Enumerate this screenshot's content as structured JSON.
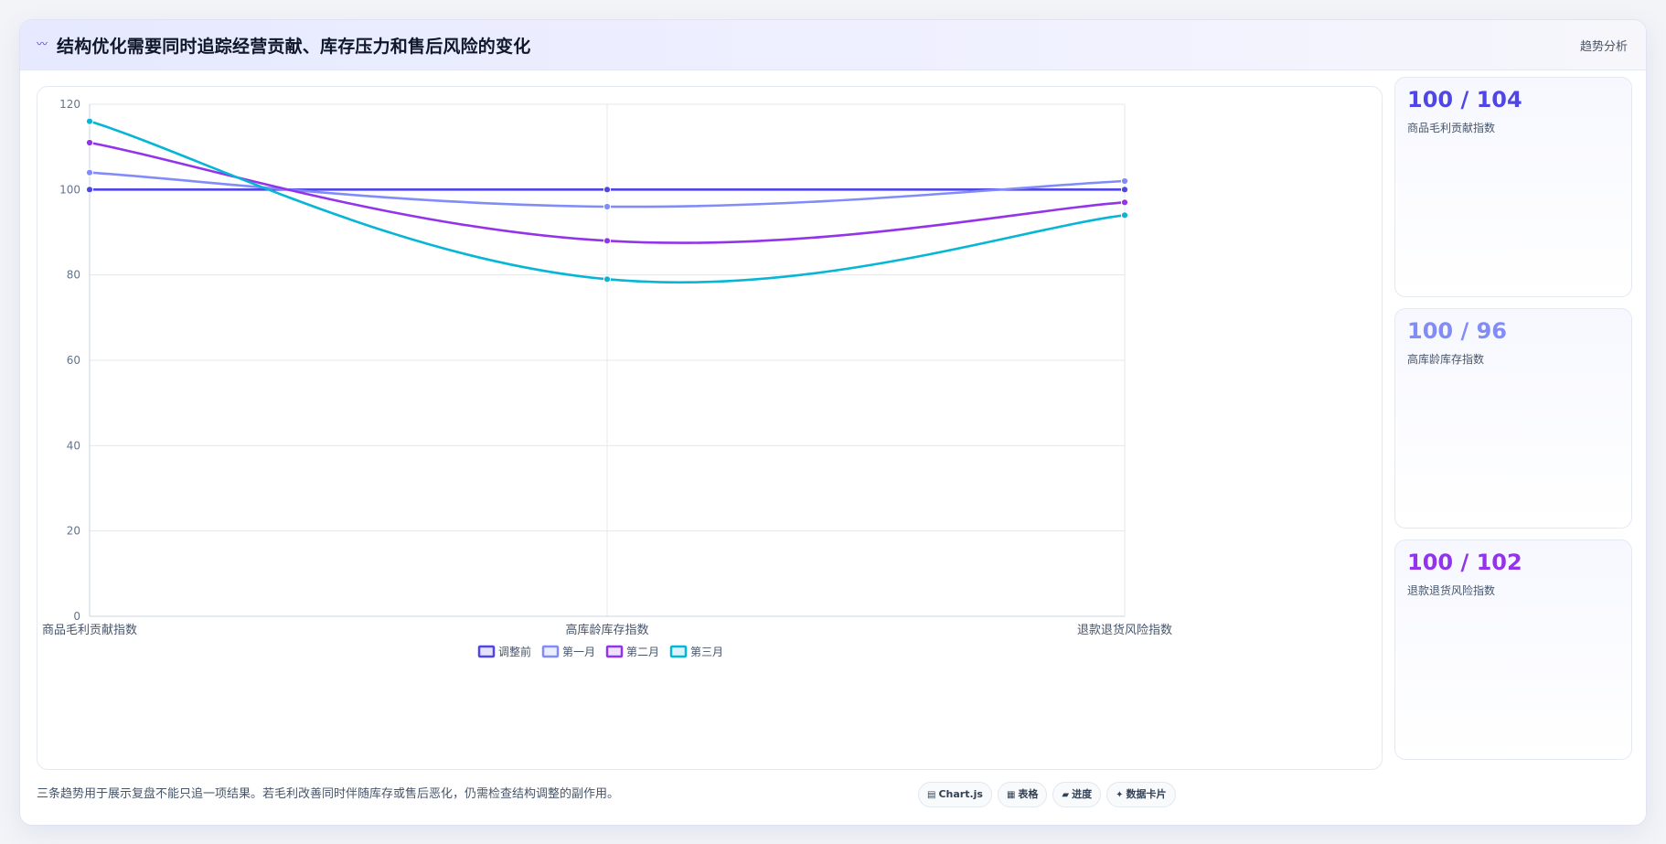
{
  "header": {
    "title": "结构优化需要同时追踪经营贡献、库存压力和售后风险的变化",
    "tag": "趋势分析",
    "icon": "sparkline-icon"
  },
  "chart_data": {
    "type": "line",
    "categories": [
      "商品毛利贡献指数",
      "高库龄库存指数",
      "退款退货风险指数"
    ],
    "ylim": [
      0,
      120
    ],
    "yticks": [
      0,
      20,
      40,
      60,
      80,
      100,
      120
    ],
    "grid": true,
    "legend_position": "bottom",
    "series": [
      {
        "name": "调整前",
        "values": [
          100,
          100,
          100
        ],
        "color": "#4f46e5"
      },
      {
        "name": "第一月",
        "values": [
          104,
          96,
          102
        ],
        "color": "#818cf8"
      },
      {
        "name": "第二月",
        "values": [
          111,
          88,
          97
        ],
        "color": "#9333ea"
      },
      {
        "name": "第三月",
        "values": [
          116,
          79,
          94
        ],
        "color": "#06b6d4"
      }
    ]
  },
  "cards": [
    {
      "value": "100 / 104",
      "label": "商品毛利贡献指数",
      "color": "#4f46e5"
    },
    {
      "value": "100 / 96",
      "label": "高库龄库存指数",
      "color": "#818cf8"
    },
    {
      "value": "100 / 102",
      "label": "退款退货风险指数",
      "color": "#9333ea"
    }
  ],
  "footnote": "三条趋势用于展示复盘不能只追一项结果。若毛利改善同时伴随库存或售后恶化，仍需检查结构调整的副作用。",
  "pills": [
    {
      "icon": "chart-icon",
      "glyph": "▤",
      "label": "Chart.js"
    },
    {
      "icon": "table-icon",
      "glyph": "▦",
      "label": "表格"
    },
    {
      "icon": "progress-icon",
      "glyph": "▰",
      "label": "进度"
    },
    {
      "icon": "card-icon",
      "glyph": "✦",
      "label": "数据卡片"
    }
  ]
}
